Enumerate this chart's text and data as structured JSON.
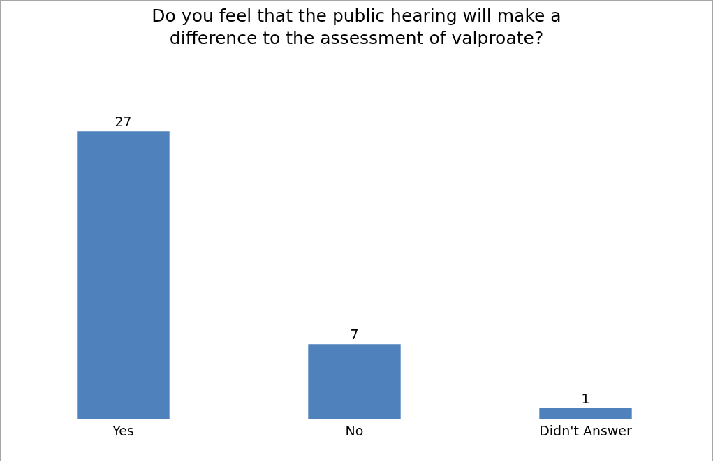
{
  "chart_data": {
    "type": "bar",
    "title": "Do you feel that the public hearing will make a\ndifference to the assessment of valproate?",
    "categories": [
      "Yes",
      "No",
      "Didn't Answer"
    ],
    "values": [
      27,
      7,
      1
    ],
    "color": "#4f81bd",
    "data_labels": true,
    "grid": false
  }
}
